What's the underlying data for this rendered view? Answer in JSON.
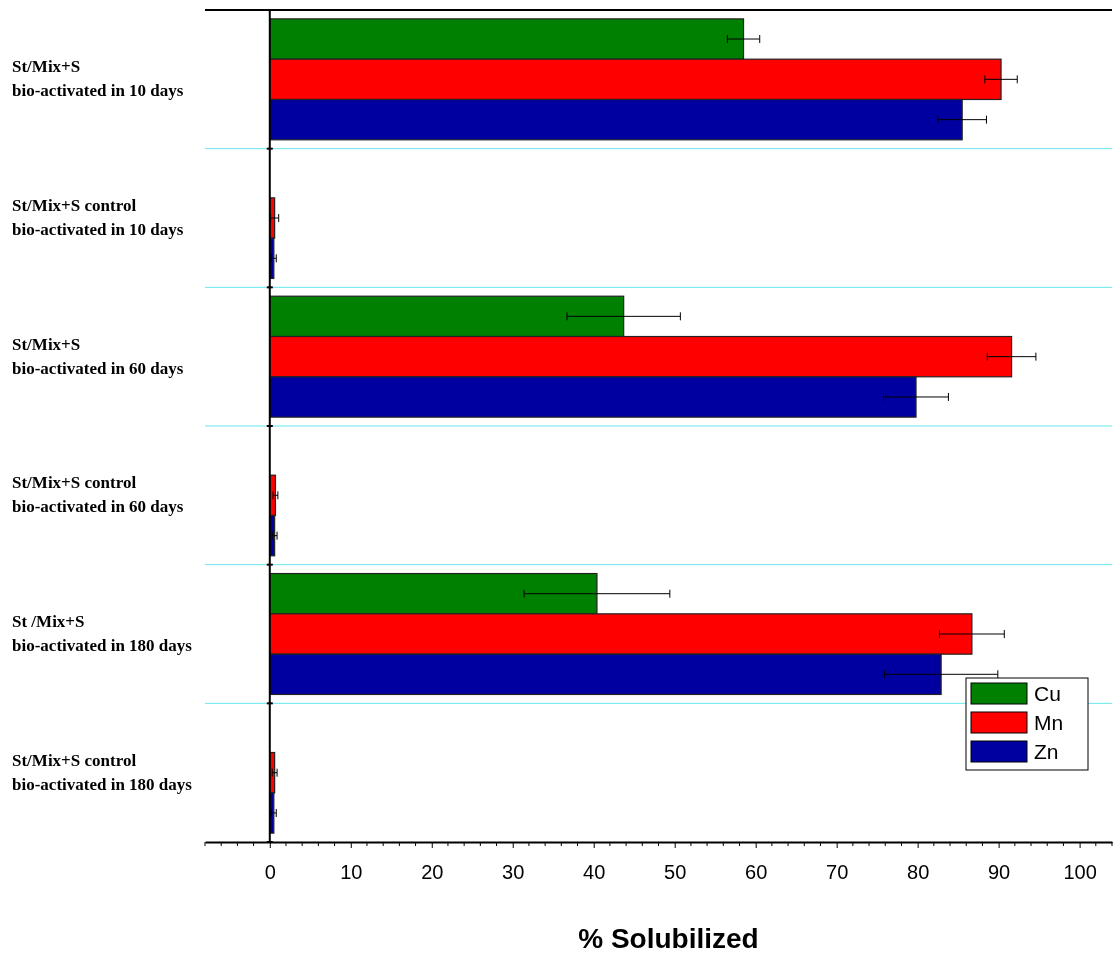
{
  "chart_data": {
    "type": "bar",
    "orientation": "horizontal",
    "xlabel": "% Solubilized",
    "categories": [
      "St/Mix+S\nbio-activated in 10 days",
      "St/Mix+S control\nbio-activated in 10 days",
      "St/Mix+S\nbio-activated in 60 days",
      "St/Mix+S control\nbio-activated in 60 days",
      "St  /Mix+S\nbio-activated in 180 days",
      "St/Mix+S control\nbio-activated in 180 days"
    ],
    "series": [
      {
        "name": "Cu",
        "color": "#008000",
        "values": [
          58.5,
          null,
          43.7,
          null,
          40.4,
          null
        ],
        "errors": [
          2,
          null,
          7,
          null,
          9,
          null
        ]
      },
      {
        "name": "Mn",
        "color": "#ff0000",
        "values": [
          90.3,
          0.6,
          91.6,
          0.7,
          86.7,
          0.6
        ],
        "errors": [
          2,
          0.5,
          3,
          0.3,
          4,
          0.3
        ]
      },
      {
        "name": "Zn",
        "color": "#0000a0",
        "values": [
          85.5,
          0.5,
          79.8,
          0.6,
          82.9,
          0.5
        ],
        "errors": [
          3,
          0.3,
          4,
          0.3,
          7,
          0.3
        ]
      }
    ],
    "xlim": [
      -8,
      104
    ],
    "xticks": [
      0,
      10,
      20,
      30,
      40,
      50,
      60,
      70,
      80,
      90,
      100
    ],
    "grid": "y",
    "legend": "bottom right"
  }
}
